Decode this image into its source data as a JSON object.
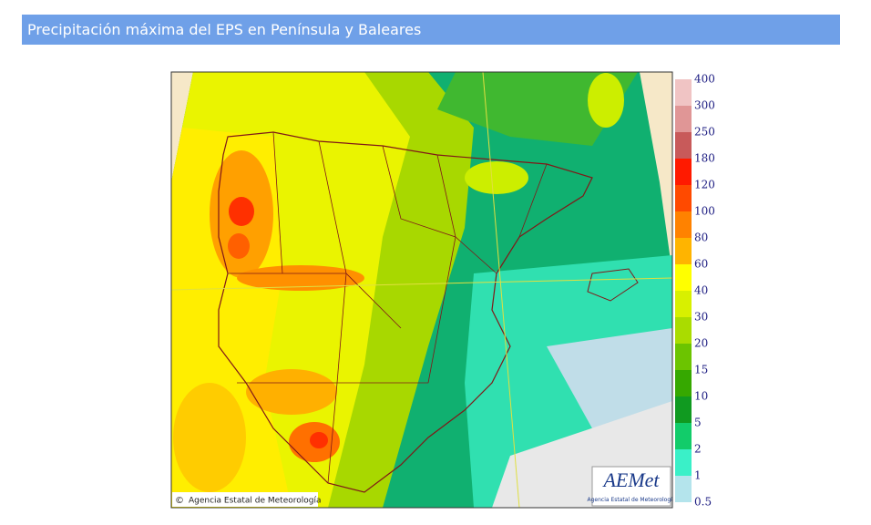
{
  "header": {
    "title": "Precipitación máxima del EPS en Península y Baleares"
  },
  "map": {
    "credit": "Agencia Estatal de Meteorología",
    "copyright": "©",
    "logo": "AEMet",
    "logo_sub": "Agencia Estatal de Meteorología"
  },
  "legend": {
    "labels": [
      "400",
      "300",
      "250",
      "180",
      "120",
      "100",
      "80",
      "60",
      "40",
      "30",
      "20",
      "15",
      "10",
      "5",
      "2",
      "1",
      "0.5"
    ],
    "colors": [
      "#f0c4c4",
      "#e09696",
      "#c85a5a",
      "#ff1a00",
      "#ff4a00",
      "#ff8200",
      "#ffb400",
      "#ffff00",
      "#d8f000",
      "#aadc00",
      "#6cc400",
      "#36a800",
      "#109a20",
      "#12cc6a",
      "#3af0c8",
      "#b4e4ec"
    ]
  }
}
